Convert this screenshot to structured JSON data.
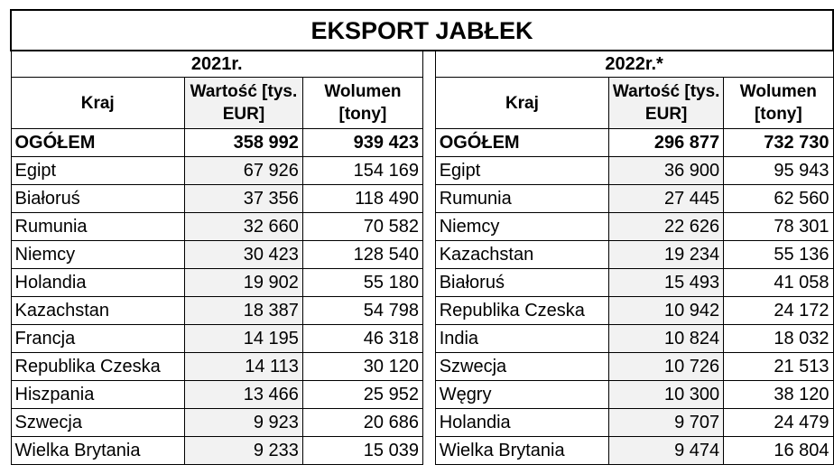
{
  "title": "EKSPORT JABŁEK",
  "left": {
    "year": "2021r.",
    "headers": {
      "country": "Kraj",
      "value": "Wartość [tys. EUR]",
      "volume": "Wolumen [tony]"
    },
    "total": {
      "label": "OGÓŁEM",
      "value": "358 992",
      "volume": "939 423"
    },
    "rows": [
      {
        "country": "Egipt",
        "value": "67 926",
        "volume": "154 169"
      },
      {
        "country": "Białoruś",
        "value": "37 356",
        "volume": "118 490"
      },
      {
        "country": "Rumunia",
        "value": "32 660",
        "volume": "70 582"
      },
      {
        "country": "Niemcy",
        "value": "30 423",
        "volume": "128 540"
      },
      {
        "country": "Holandia",
        "value": "19 902",
        "volume": "55 180"
      },
      {
        "country": "Kazachstan",
        "value": "18 387",
        "volume": "54 798"
      },
      {
        "country": "Francja",
        "value": "14 195",
        "volume": "46 318"
      },
      {
        "country": "Republika Czeska",
        "value": "14 113",
        "volume": "30 120"
      },
      {
        "country": "Hiszpania",
        "value": "13 466",
        "volume": "25 952"
      },
      {
        "country": "Szwecja",
        "value": "9 923",
        "volume": "20 686"
      },
      {
        "country": "Wielka Brytania",
        "value": "9 233",
        "volume": "15 039"
      }
    ]
  },
  "right": {
    "year": "2022r.*",
    "headers": {
      "country": "Kraj",
      "value": "Wartość [tys. EUR]",
      "volume": "Wolumen [tony]"
    },
    "total": {
      "label": "OGÓŁEM",
      "value": "296 877",
      "volume": "732 730"
    },
    "rows": [
      {
        "country": "Egipt",
        "value": "36 900",
        "volume": "95 943"
      },
      {
        "country": "Rumunia",
        "value": "27 445",
        "volume": "62 560"
      },
      {
        "country": "Niemcy",
        "value": "22 626",
        "volume": "78 301"
      },
      {
        "country": "Kazachstan",
        "value": "19 234",
        "volume": "55 136"
      },
      {
        "country": "Białoruś",
        "value": "15 493",
        "volume": "41 058"
      },
      {
        "country": "Republika Czeska",
        "value": "10 942",
        "volume": "24 172"
      },
      {
        "country": "India",
        "value": "10 824",
        "volume": "18 032"
      },
      {
        "country": "Szwecja",
        "value": "10 726",
        "volume": "21 513"
      },
      {
        "country": "Węgry",
        "value": "10 300",
        "volume": "38 120"
      },
      {
        "country": "Holandia",
        "value": "9 707",
        "volume": "24 479"
      },
      {
        "country": "Wielka Brytania",
        "value": "9 474",
        "volume": "16 804"
      }
    ]
  }
}
